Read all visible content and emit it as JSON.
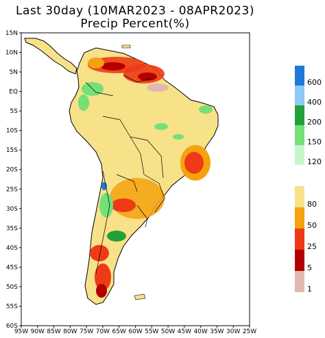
{
  "title": {
    "line1": "Last 30day (10MAR2023 - 08APR2023)",
    "line2": "Precip Percent(%)"
  },
  "map": {
    "lat_labels": [
      "15N",
      "10N",
      "5N",
      "EQ",
      "5S",
      "10S",
      "15S",
      "20S",
      "25S",
      "30S",
      "35S",
      "40S",
      "45S",
      "50S",
      "55S",
      "60S"
    ],
    "lon_labels": [
      "95W",
      "90W",
      "85W",
      "80W",
      "75W",
      "70W",
      "65W",
      "60W",
      "55W",
      "50W",
      "45W",
      "40W",
      "35W",
      "30W",
      "25W"
    ],
    "extent": {
      "lon_min": -95,
      "lon_max": -25,
      "lat_min": -60,
      "lat_max": 15
    }
  },
  "legend": {
    "wet": [
      {
        "label": "600",
        "color": "#1f78d8"
      },
      {
        "label": "400",
        "color": "#8ec8f4"
      },
      {
        "label": "200",
        "color": "#22a03a"
      },
      {
        "label": "150",
        "color": "#74e078"
      },
      {
        "label": "120",
        "color": "#c8f5c8"
      }
    ],
    "dry": [
      {
        "label": "80",
        "color": "#f7e189"
      },
      {
        "label": "50",
        "color": "#f5a20f"
      },
      {
        "label": "25",
        "color": "#ee3a16"
      },
      {
        "label": "5",
        "color": "#b20000"
      },
      {
        "label": "1",
        "color": "#e0b9b0"
      }
    ]
  },
  "colors": {
    "land_base": "#f7e189",
    "ocean": "#ffffff",
    "border": "#000000"
  }
}
